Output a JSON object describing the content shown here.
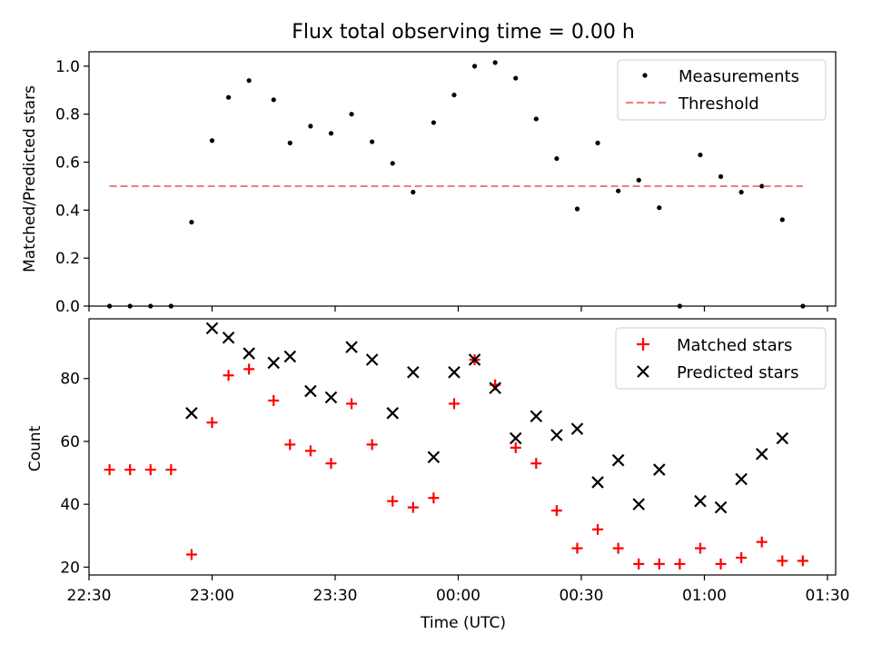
{
  "title": "Flux total observing time = 0.00 h",
  "chart_data": [
    {
      "type": "scatter",
      "ylabel": "Matched/Predicted stars",
      "xlabel": "",
      "ylim": [
        0,
        1.06
      ],
      "yticks": [
        "0.0",
        "0.2",
        "0.4",
        "0.6",
        "0.8",
        "1.0"
      ],
      "ytick_values": [
        0,
        0.2,
        0.4,
        0.6,
        0.8,
        1.0
      ],
      "legend": {
        "placement": "top-right",
        "entries": [
          "Measurements",
          "Threshold"
        ]
      },
      "series": [
        {
          "name": "Measurements",
          "marker": "dot",
          "color": "#000000",
          "x": [
            "22:35",
            "22:40",
            "22:45",
            "22:50",
            "22:55",
            "23:00",
            "23:04",
            "23:09",
            "23:15",
            "23:19",
            "23:24",
            "23:29",
            "23:34",
            "23:39",
            "23:44",
            "23:49",
            "23:54",
            "23:59",
            "24:04",
            "24:09",
            "24:14",
            "24:19",
            "24:24",
            "24:29",
            "24:34",
            "24:39",
            "24:44",
            "24:49",
            "24:54",
            "24:59",
            "25:04",
            "25:09",
            "25:14",
            "25:19",
            "25:24"
          ],
          "y": [
            0,
            0,
            0,
            0,
            0.35,
            0.69,
            0.87,
            0.94,
            0.86,
            0.68,
            0.75,
            0.72,
            0.8,
            0.685,
            0.595,
            0.475,
            0.765,
            0.88,
            1.0,
            1.015,
            0.95,
            0.78,
            0.615,
            0.405,
            0.68,
            0.48,
            0.525,
            0.41,
            0,
            0.63,
            0.54,
            0.475,
            0.5,
            0.36,
            0
          ]
        },
        {
          "name": "Threshold",
          "marker": "dashed-line",
          "color": "#f08080",
          "x": [
            "22:35",
            "25:24"
          ],
          "y": [
            0.5,
            0.5
          ]
        }
      ]
    },
    {
      "type": "scatter",
      "xlabel": "Time (UTC)",
      "ylabel": "Count",
      "ylim": [
        17.5,
        99
      ],
      "yticks": [
        "20",
        "40",
        "60",
        "80"
      ],
      "ytick_values": [
        20,
        40,
        60,
        80
      ],
      "xlim": [
        "22:30",
        "25:32"
      ],
      "xticks": [
        "22:30",
        "23:00",
        "23:30",
        "00:00",
        "00:30",
        "01:00",
        "01:30"
      ],
      "legend": {
        "placement": "top-right",
        "entries": [
          "Matched stars",
          "Predicted stars"
        ]
      },
      "series": [
        {
          "name": "Matched stars",
          "marker": "plus",
          "color": "#ff0000",
          "x": [
            "22:35",
            "22:40",
            "22:45",
            "22:50",
            "22:55",
            "23:00",
            "23:04",
            "23:09",
            "23:15",
            "23:19",
            "23:24",
            "23:29",
            "23:34",
            "23:39",
            "23:44",
            "23:49",
            "23:54",
            "23:59",
            "24:04",
            "24:09",
            "24:14",
            "24:19",
            "24:24",
            "24:29",
            "24:34",
            "24:39",
            "24:44",
            "24:49",
            "24:54",
            "24:59",
            "25:04",
            "25:09",
            "25:14",
            "25:19",
            "25:24"
          ],
          "y": [
            51,
            51,
            51,
            51,
            24,
            66,
            81,
            83,
            73,
            59,
            57,
            53,
            72,
            59,
            41,
            39,
            42,
            72,
            86,
            78,
            58,
            53,
            38,
            26,
            32,
            26,
            21,
            21,
            21,
            26,
            21,
            23,
            28,
            22,
            22
          ]
        },
        {
          "name": "Predicted stars",
          "marker": "x",
          "color": "#000000",
          "x": [
            "22:55",
            "23:00",
            "23:04",
            "23:09",
            "23:15",
            "23:19",
            "23:24",
            "23:29",
            "23:34",
            "23:39",
            "23:44",
            "23:49",
            "23:54",
            "23:59",
            "24:04",
            "24:09",
            "24:14",
            "24:19",
            "24:24",
            "24:29",
            "24:34",
            "24:39",
            "24:44",
            "24:49",
            "24:59",
            "25:04",
            "25:09",
            "25:14",
            "25:19"
          ],
          "y": [
            69,
            96,
            93,
            88,
            85,
            87,
            76,
            74,
            90,
            86,
            69,
            82,
            55,
            82,
            86,
            77,
            61,
            68,
            62,
            64,
            47,
            54,
            40,
            51,
            41,
            39,
            48,
            56,
            61
          ]
        }
      ]
    }
  ]
}
